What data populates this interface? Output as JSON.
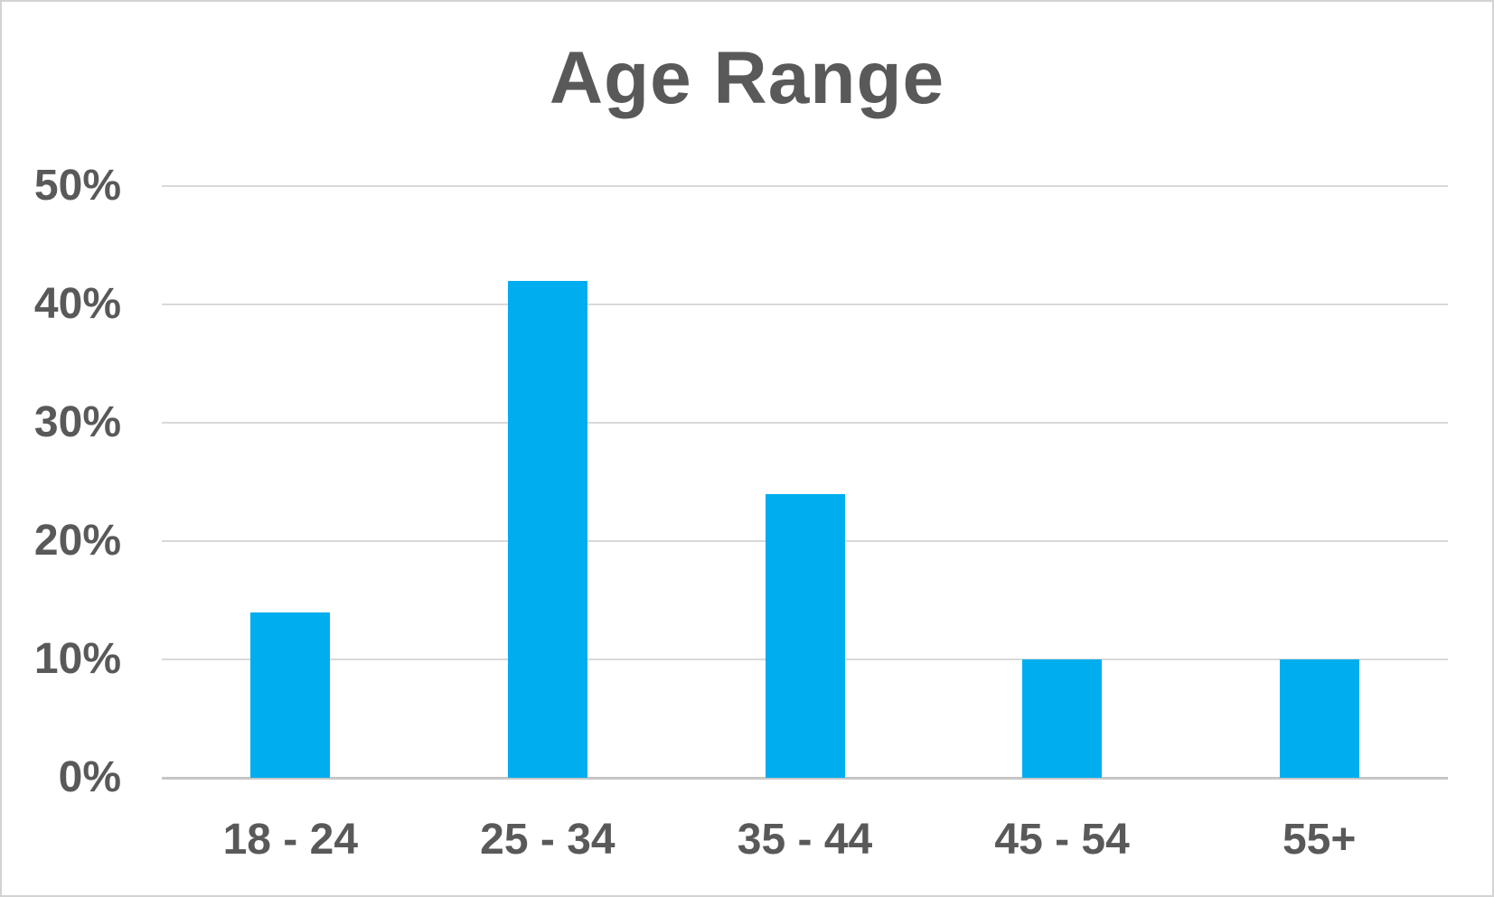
{
  "chart_data": {
    "type": "bar",
    "title": "Age Range",
    "categories": [
      "18 - 24",
      "25 - 34",
      "35 - 44",
      "45 - 54",
      "55+"
    ],
    "values": [
      14,
      42,
      24,
      10,
      10
    ],
    "value_unit": "%",
    "xlabel": "",
    "ylabel": "",
    "ylim": [
      0,
      50
    ],
    "ytick_step": 10,
    "ytick_labels": [
      "0%",
      "10%",
      "20%",
      "30%",
      "40%",
      "50%"
    ],
    "grid": true,
    "legend": false,
    "colors": {
      "bar": "#00AEEF",
      "text": "#595959",
      "gridline": "#D9D9D9",
      "baseline": "#C6C6C6",
      "background": "#FFFFFF",
      "frame_border": "#D3D3D3"
    }
  }
}
